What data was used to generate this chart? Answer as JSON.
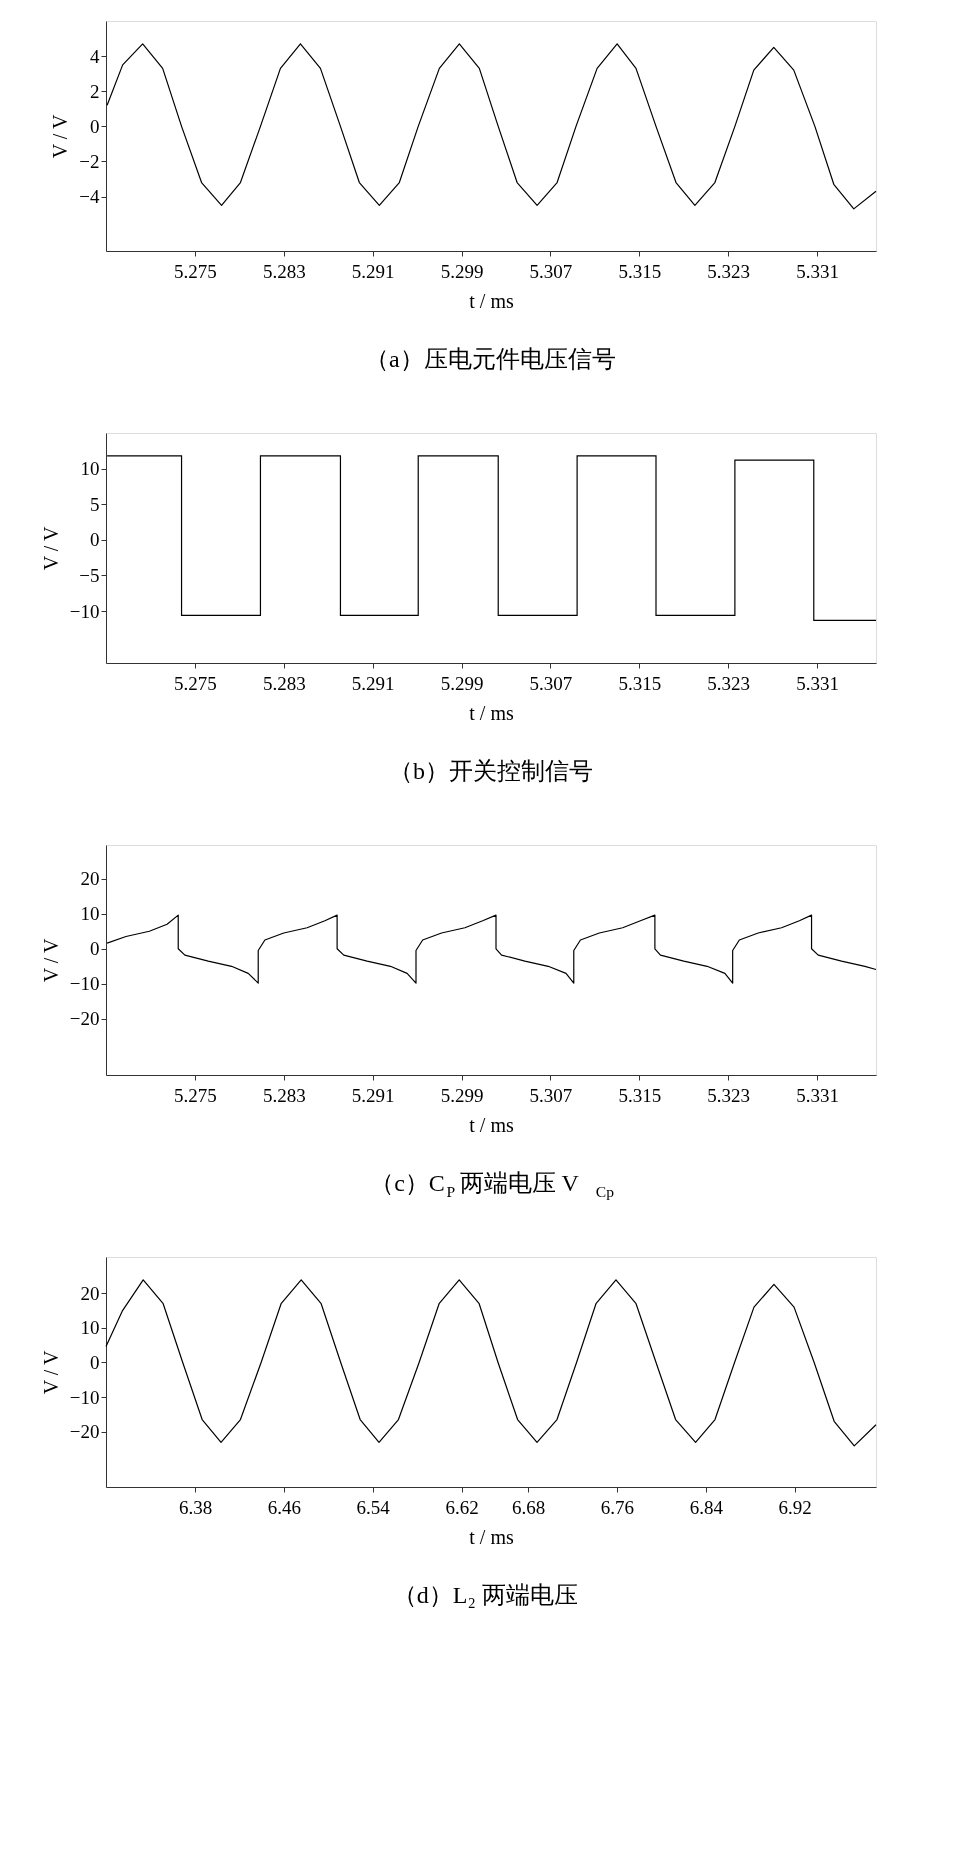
{
  "chart_data": [
    {
      "type": "line",
      "title": "（a）压电元件电压信号",
      "xlabel": "t / ms",
      "ylabel": "V / V",
      "color": "#000000",
      "x": [
        5.2671,
        5.2685,
        5.2703,
        5.2721,
        5.2738,
        5.2756,
        5.2774,
        5.2791,
        5.2809,
        5.2827,
        5.2845,
        5.2863,
        5.2881,
        5.2898,
        5.2916,
        5.2934,
        5.2951,
        5.297,
        5.2988,
        5.3006,
        5.3023,
        5.304,
        5.3058,
        5.3076,
        5.3093,
        5.3112,
        5.313,
        5.3147,
        5.3165,
        5.3183,
        5.32,
        5.3218,
        5.3236,
        5.3253,
        5.3271,
        5.3289,
        5.3308,
        5.3325,
        5.3343,
        5.3363
      ],
      "values": [
        1.2,
        3.5,
        4.7,
        3.3,
        0,
        -3.2,
        -4.5,
        -3.2,
        0,
        3.3,
        4.7,
        3.3,
        0,
        -3.2,
        -4.5,
        -3.2,
        0,
        3.3,
        4.7,
        3.3,
        0,
        -3.2,
        -4.5,
        -3.2,
        0,
        3.3,
        4.7,
        3.3,
        0,
        -3.2,
        -4.5,
        -3.2,
        0,
        3.2,
        4.5,
        3.2,
        0,
        -3.3,
        -4.7,
        -3.7
      ],
      "xlim": [
        5.267,
        5.3363
      ],
      "xticks": [
        5.275,
        5.283,
        5.291,
        5.299,
        5.307,
        5.315,
        5.323,
        5.331
      ],
      "ylim": [
        -7.1,
        6.0
      ],
      "yticks": [
        -4,
        -2,
        0,
        2,
        4
      ]
    },
    {
      "type": "step",
      "title": "（b）开关控制信号",
      "xlabel": "t / ms",
      "ylabel": "V / V",
      "color": "#000000",
      "x": [
        5.2671,
        5.2738,
        5.2809,
        5.2881,
        5.2951,
        5.3023,
        5.3094,
        5.3165,
        5.3236,
        5.3307,
        5.3363
      ],
      "values": [
        11.8,
        -10.6,
        11.8,
        -10.6,
        11.8,
        -10.6,
        11.8,
        -10.6,
        11.2,
        -11.3,
        -11.3
      ],
      "xlim": [
        5.267,
        5.3363
      ],
      "xticks": [
        5.275,
        5.283,
        5.291,
        5.299,
        5.307,
        5.315,
        5.323,
        5.331
      ],
      "ylim": [
        -17.3,
        15.0
      ],
      "yticks": [
        -10,
        -5,
        0,
        5,
        10
      ]
    },
    {
      "type": "line",
      "title": "（c）C$_{P}$ 两端电压 V$_{Cp}$",
      "xlabel": "t / ms",
      "ylabel": "V / V",
      "color": "#000000",
      "x": [
        5.2671,
        5.2688,
        5.2709,
        5.2725,
        5.2735,
        5.2735,
        5.2741,
        5.2762,
        5.2783,
        5.2798,
        5.2807,
        5.2807,
        5.2813,
        5.283,
        5.2851,
        5.2867,
        5.2878,
        5.2878,
        5.2884,
        5.2905,
        5.2926,
        5.2941,
        5.2949,
        5.2949,
        5.2955,
        5.2972,
        5.2993,
        5.3009,
        5.3021,
        5.3021,
        5.3026,
        5.3047,
        5.3068,
        5.3084,
        5.3091,
        5.3091,
        5.3097,
        5.3114,
        5.3135,
        5.3151,
        5.3164,
        5.3164,
        5.3169,
        5.319,
        5.3211,
        5.3227,
        5.3234,
        5.3234,
        5.324,
        5.3257,
        5.3278,
        5.3294,
        5.3305,
        5.3305,
        5.3311,
        5.3332,
        5.3353,
        5.3363
      ],
      "values": [
        1.6,
        3.5,
        5,
        7,
        9.6,
        0,
        -1.8,
        -3.5,
        -5,
        -7,
        -9.8,
        -0.5,
        2.5,
        4.5,
        6,
        8,
        9.6,
        0,
        -1.8,
        -3.5,
        -5,
        -7,
        -9.8,
        -0.5,
        2.5,
        4.5,
        6,
        8,
        9.6,
        0,
        -1.8,
        -3.5,
        -5,
        -7,
        -9.8,
        -0.5,
        2.5,
        4.5,
        6,
        8,
        9.6,
        0,
        -1.8,
        -3.5,
        -5,
        -7,
        -9.8,
        -0.5,
        2.5,
        4.5,
        6,
        8,
        9.6,
        0,
        -1.8,
        -3.5,
        -5,
        -5.9
      ],
      "xlim": [
        5.267,
        5.3363
      ],
      "xticks": [
        5.275,
        5.283,
        5.291,
        5.299,
        5.307,
        5.315,
        5.323,
        5.331
      ],
      "ylim": [
        -36,
        29.6
      ],
      "yticks": [
        -20,
        -10,
        0,
        10,
        20
      ]
    },
    {
      "type": "line",
      "title": "（d）L₂ 两端电压",
      "xlabel": "t / ms",
      "ylabel": "V / V",
      "color": "#000000",
      "x": [
        6.2998,
        6.3147,
        6.3333,
        6.3513,
        6.3689,
        6.3864,
        6.4034,
        6.4209,
        6.4395,
        6.4575,
        6.4756,
        6.4936,
        6.5112,
        6.5287,
        6.5457,
        6.5632,
        6.5818,
        6.5998,
        6.6179,
        6.6359,
        6.6529,
        6.6705,
        6.688,
        6.706,
        6.7236,
        6.7411,
        6.7591,
        6.7772,
        6.7952,
        6.8128,
        6.8308,
        6.8483,
        6.8659,
        6.8834,
        6.9014,
        6.9195,
        6.9376,
        6.9556,
        6.9737,
        6.9933
      ],
      "values": [
        4.6,
        15,
        23.9,
        17,
        0,
        -16.5,
        -23.1,
        -16.5,
        0,
        17,
        23.9,
        17,
        0,
        -16.5,
        -23.1,
        -16.5,
        0,
        17,
        23.9,
        17,
        0,
        -16.5,
        -23.1,
        -16.5,
        0,
        17,
        23.9,
        17,
        0,
        -16.5,
        -23.1,
        -16.5,
        0,
        16,
        22.6,
        16,
        0,
        -17,
        -24.1,
        -18
      ],
      "xlim": [
        6.2998,
        6.9933
      ],
      "xticks": [
        6.38,
        6.46,
        6.54,
        6.62,
        6.68,
        6.76,
        6.84,
        6.92
      ],
      "ylim": [
        -36,
        30.5
      ],
      "yticks": [
        -20,
        -10,
        0,
        10,
        20
      ]
    }
  ]
}
